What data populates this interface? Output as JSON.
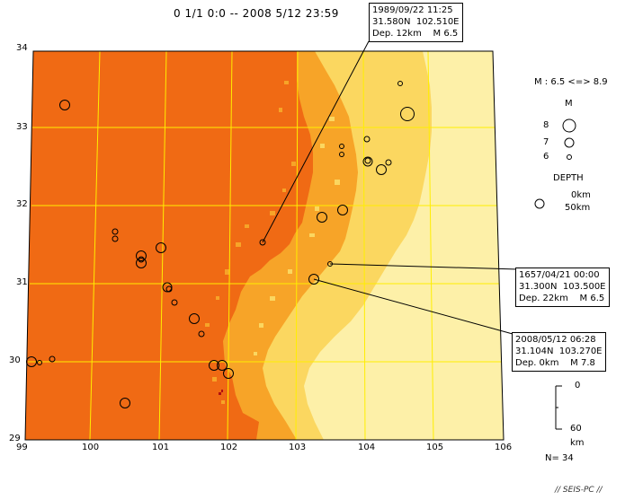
{
  "title": "0 1/1 0:0 -- 2008 5/12 23:59",
  "map": {
    "lat_ticks": [
      "34",
      "33",
      "32",
      "31",
      "30",
      "29"
    ],
    "lon_ticks": [
      "99",
      "100",
      "101",
      "102",
      "103",
      "104",
      "105",
      "106"
    ],
    "colors": {
      "lowland": "#f06a14",
      "transition": "#f7a428",
      "highland_mid": "#fbd760",
      "highland_light": "#fdf0a8",
      "grid": "#ffee00",
      "event_marker": "#000000"
    }
  },
  "annotations": [
    {
      "lines": [
        "1989/09/22 11:25",
        "31.580N  102.510E",
        "Dep. 12km    M 6.5"
      ]
    },
    {
      "lines": [
        "1657/04/21 00:00",
        "31.300N  103.500E",
        "Dep. 22km    M 6.5"
      ]
    },
    {
      "lines": [
        "2008/05/12 06:28",
        "31.104N  103.270E",
        "Dep. 0km    M 7.8"
      ]
    }
  ],
  "legend": {
    "magnitude_range": "M : 6.5 <=> 8.9",
    "magnitude_header": "M",
    "magnitudes": [
      "8",
      "7",
      "6"
    ],
    "depth_header": "DEPTH",
    "depth_values": [
      "0km",
      "50km"
    ],
    "depth_scale_ticks": [
      "0",
      "60"
    ],
    "depth_unit": "km",
    "count": "N= 34"
  },
  "footer": "// SEIS-PC //"
}
